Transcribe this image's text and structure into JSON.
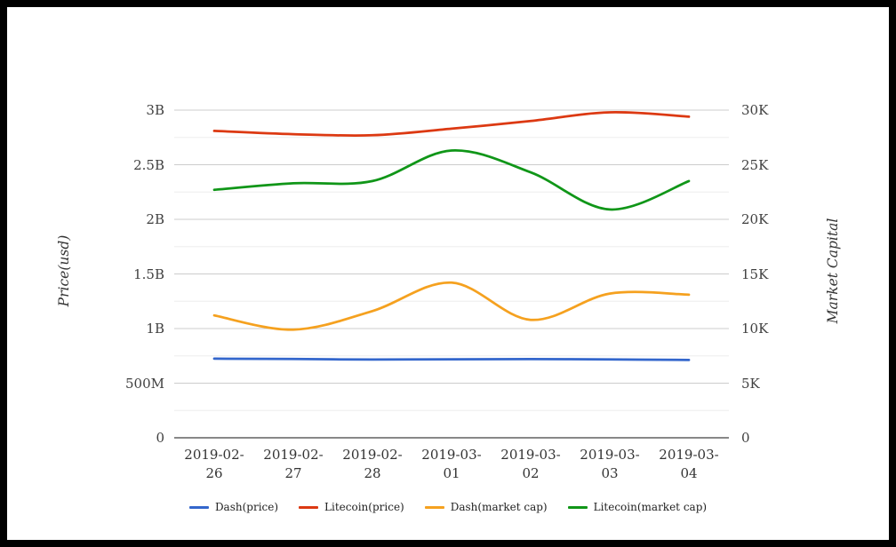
{
  "chart_data": {
    "type": "line",
    "curve": "smooth",
    "grid": true,
    "legend_position": "bottom",
    "x_categories": [
      "2019-02-26",
      "2019-02-27",
      "2019-02-28",
      "2019-03-01",
      "2019-03-02",
      "2019-03-03",
      "2019-03-04"
    ],
    "left_axis": {
      "title": "Price(usd)",
      "ticks": [
        "0",
        "500M",
        "1B",
        "1.5B",
        "2B",
        "2.5B",
        "3B"
      ],
      "range": [
        0,
        3000000000
      ],
      "max_units_billion": 3
    },
    "right_axis": {
      "title": "Market Capital",
      "ticks": [
        "0",
        "5K",
        "10K",
        "15K",
        "20K",
        "25K",
        "30K"
      ],
      "range": [
        0,
        30000
      ],
      "max_units_thousand": 30
    },
    "series": [
      {
        "name": "Dash(price)",
        "axis": "left",
        "unit": "billion USD",
        "color": "#3366CC",
        "values": [
          0.724,
          0.721,
          0.716,
          0.719,
          0.72,
          0.718,
          0.712
        ]
      },
      {
        "name": "Litecoin(price)",
        "axis": "left",
        "unit": "billion USD",
        "color": "#DC3912",
        "values": [
          2.81,
          2.78,
          2.77,
          2.83,
          2.9,
          2.98,
          2.94
        ]
      },
      {
        "name": "Dash(market cap)",
        "axis": "right",
        "unit": "thousand",
        "color": "#F5A11F",
        "values": [
          11.2,
          9.9,
          11.6,
          14.2,
          10.8,
          13.2,
          13.1
        ]
      },
      {
        "name": "Litecoin(market cap)",
        "axis": "right",
        "unit": "thousand",
        "color": "#109618",
        "values": [
          22.7,
          23.3,
          23.5,
          26.3,
          24.3,
          20.9,
          23.5
        ]
      }
    ]
  }
}
